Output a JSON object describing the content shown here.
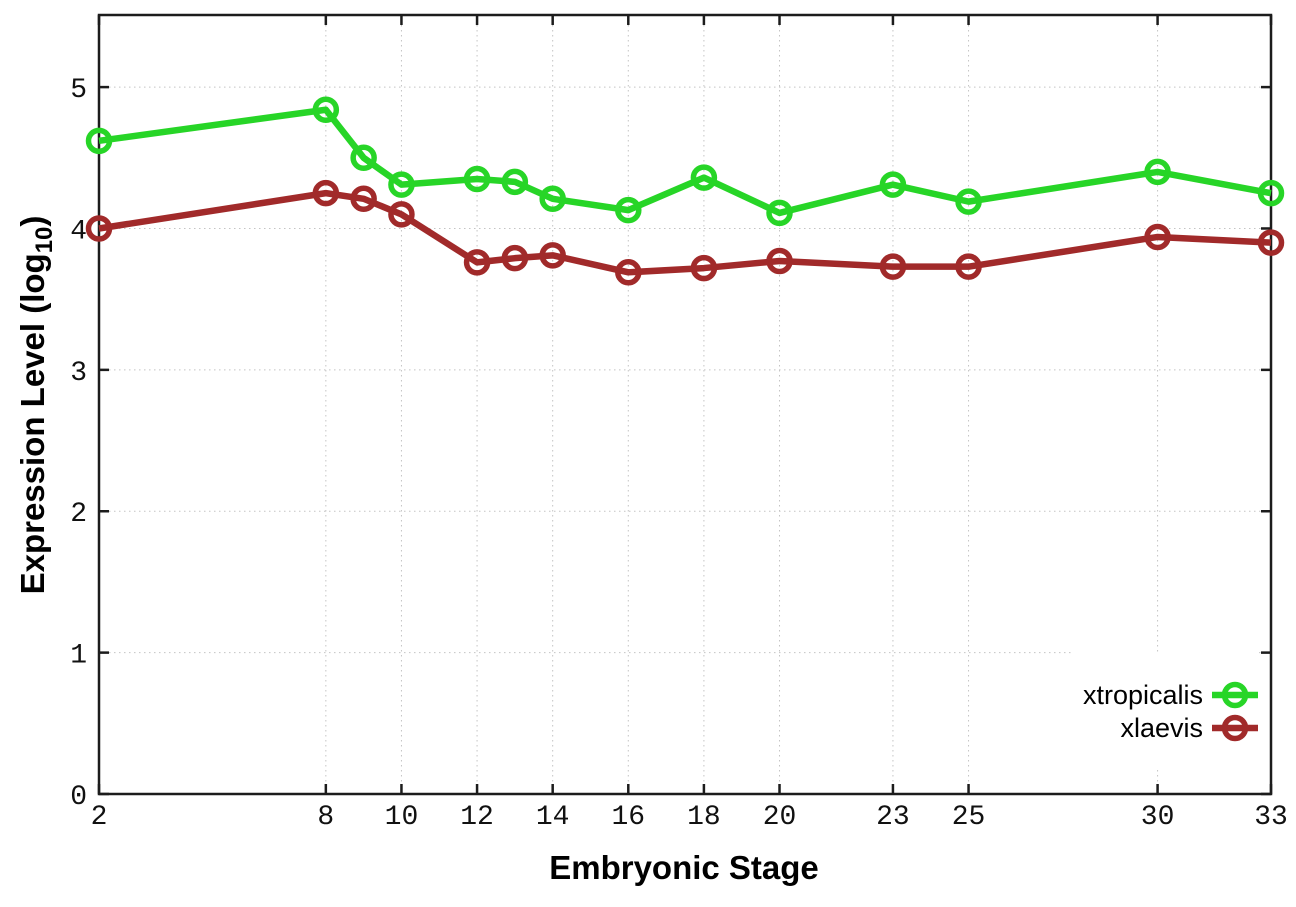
{
  "figure": {
    "xlabel": "Embryonic Stage",
    "ylabel": {
      "prefix": "Expression Level (log",
      "sub": "10",
      "suffix": ")"
    }
  },
  "chart_data": {
    "type": "line",
    "title": "",
    "xlabel": "Embryonic Stage",
    "ylabel": "Expression Level (log10)",
    "x": [
      2,
      8,
      9,
      10,
      12,
      13,
      14,
      16,
      18,
      20,
      23,
      25,
      30,
      33
    ],
    "xticks": [
      2,
      8,
      10,
      12,
      14,
      16,
      18,
      20,
      23,
      25,
      30,
      33
    ],
    "yticks": [
      0,
      1,
      2,
      3,
      4,
      5
    ],
    "xlim": [
      2,
      33
    ],
    "ylim": [
      0,
      5.51
    ],
    "grid": true,
    "legend_position": "bottom-right",
    "series": [
      {
        "name": "xtropicalis",
        "color": "#27d527",
        "values": [
          4.62,
          4.84,
          4.5,
          4.31,
          4.35,
          4.33,
          4.21,
          4.13,
          4.36,
          4.11,
          4.31,
          4.19,
          4.4,
          4.25
        ]
      },
      {
        "name": "xlaevis",
        "color": "#a12a2a",
        "values": [
          4.0,
          4.25,
          4.21,
          4.1,
          3.76,
          3.79,
          3.81,
          3.69,
          3.72,
          3.77,
          3.73,
          3.73,
          3.94,
          3.9
        ]
      }
    ],
    "colors": {
      "grid": "#c4c4c4",
      "border": "#1c1c1c",
      "tick_label": "#111111",
      "background": "#ffffff"
    }
  }
}
